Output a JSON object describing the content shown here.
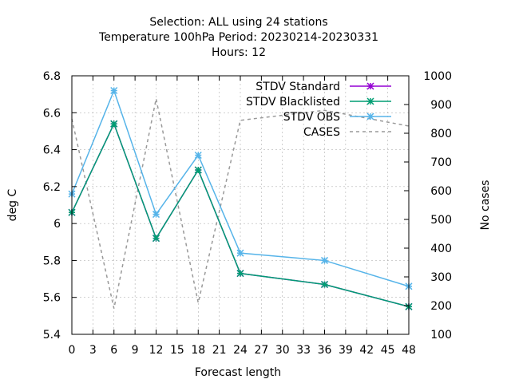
{
  "chart_data": {
    "type": "line",
    "title_lines": [
      "Selection: ALL using    24 stations",
      "Temperature 100hPa   Period: 20230214-20230331",
      "Hours:  12"
    ],
    "xlabel": "Forecast length",
    "ylabel": "deg C",
    "y2label": "No cases",
    "xlim": [
      0,
      48
    ],
    "ylim": [
      5.4,
      6.8
    ],
    "y2lim": [
      100,
      1000
    ],
    "xticks": [
      0,
      3,
      6,
      9,
      12,
      15,
      18,
      21,
      24,
      27,
      30,
      33,
      36,
      39,
      42,
      45,
      48
    ],
    "xtick_labels": [
      "0",
      "3",
      "6",
      "9",
      "12",
      "15",
      "18",
      "21",
      "24",
      "27",
      "30",
      "33",
      "36",
      "39",
      "42",
      "45",
      "48"
    ],
    "yticks": [
      5.4,
      5.6,
      5.8,
      6.0,
      6.2,
      6.4,
      6.6,
      6.8
    ],
    "ytick_labels": [
      "5.4",
      "5.6",
      "5.8",
      "6",
      "6.2",
      "6.4",
      "6.6",
      "6.8"
    ],
    "y2ticks": [
      100,
      200,
      300,
      400,
      500,
      600,
      700,
      800,
      900,
      1000
    ],
    "y2tick_labels": [
      "100",
      "200",
      "300",
      "400",
      "500",
      "600",
      "700",
      "800",
      "900",
      "1000"
    ],
    "grid": true,
    "legend_position": "top-right",
    "x": [
      0,
      6,
      12,
      18,
      24,
      36,
      48
    ],
    "series": [
      {
        "name": "STDV Standard",
        "axis": "left",
        "color": "#9400d3",
        "style": "solid",
        "marker": "x-star",
        "values": [
          6.06,
          6.54,
          5.92,
          6.29,
          5.73,
          5.67,
          5.55
        ]
      },
      {
        "name": "STDV Blacklisted",
        "axis": "left",
        "color": "#009e73",
        "style": "solid",
        "marker": "x-star",
        "values": [
          6.06,
          6.54,
          5.92,
          6.29,
          5.73,
          5.67,
          5.55
        ]
      },
      {
        "name": "STDV OBS",
        "axis": "left",
        "color": "#56b4e9",
        "style": "solid",
        "marker": "x-star",
        "values": [
          6.16,
          6.72,
          6.05,
          6.37,
          5.84,
          5.8,
          5.66
        ]
      },
      {
        "name": "CASES",
        "axis": "right",
        "color": "#999999",
        "style": "dashed",
        "marker": "none",
        "values": [
          850,
          190,
          920,
          210,
          845,
          880,
          825
        ]
      }
    ]
  }
}
